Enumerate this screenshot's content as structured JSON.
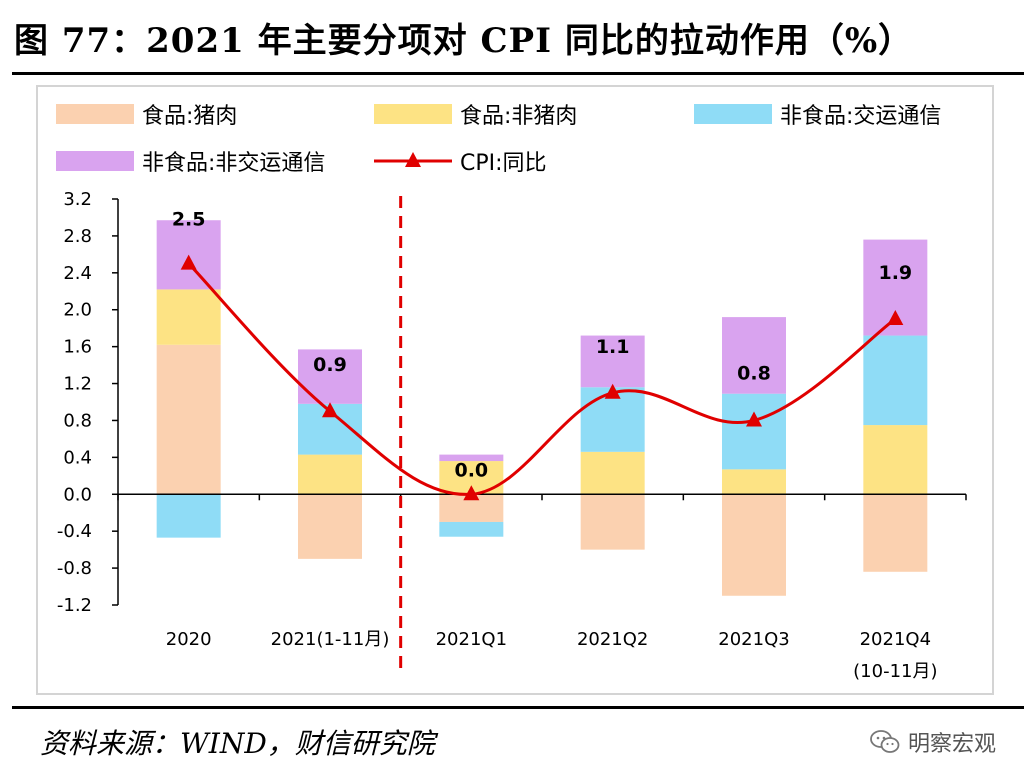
{
  "title": "图 77：2021 年主要分项对 CPI 同比的拉动作用（%）",
  "source": "资料来源：WIND，财信研究院",
  "watermark": {
    "text": "明察宏观",
    "icon": "wechat-icon"
  },
  "colors": {
    "pork": "#fbd1b0",
    "nonpork": "#fde384",
    "transport": "#8fdcf6",
    "nontransport": "#d9a3ef",
    "cpi": "#e00000",
    "divider": "#e00000"
  },
  "chart_data": {
    "type": "bar",
    "stacked": true,
    "categories": [
      "2020",
      "2021(1-11月)",
      "2021Q1",
      "2021Q2",
      "2021Q3",
      "2021Q4\n(10-11月)"
    ],
    "series": [
      {
        "name": "食品:猪肉",
        "type": "bar",
        "color": "#fbd1b0",
        "values": [
          1.62,
          -0.7,
          -0.3,
          -0.6,
          -1.1,
          -0.84
        ]
      },
      {
        "name": "食品:非猪肉",
        "type": "bar",
        "color": "#fde384",
        "values": [
          0.6,
          0.43,
          0.36,
          0.46,
          0.27,
          0.75
        ]
      },
      {
        "name": "非食品:交运通信",
        "type": "bar",
        "color": "#8fdcf6",
        "values": [
          -0.47,
          0.55,
          -0.16,
          0.7,
          0.82,
          0.97
        ]
      },
      {
        "name": "非食品:非交运通信",
        "type": "bar",
        "color": "#d9a3ef",
        "values": [
          0.75,
          0.59,
          0.07,
          0.56,
          0.83,
          1.04
        ]
      },
      {
        "name": "CPI:同比",
        "type": "line",
        "color": "#e00000",
        "values": [
          2.5,
          0.9,
          0.0,
          1.1,
          0.8,
          1.9
        ]
      }
    ],
    "data_labels": [
      "2.5",
      "0.9",
      "0.0",
      "1.1",
      "0.8",
      "1.9"
    ],
    "y_ticks": [
      "3.2",
      "2.8",
      "2.4",
      "2.0",
      "1.6",
      "1.2",
      "0.8",
      "0.4",
      "0.0",
      "-0.4",
      "-0.8",
      "-1.2"
    ],
    "ylim": [
      -1.2,
      3.2
    ],
    "grid": false,
    "legend": "top",
    "divider_after_category": 1
  }
}
